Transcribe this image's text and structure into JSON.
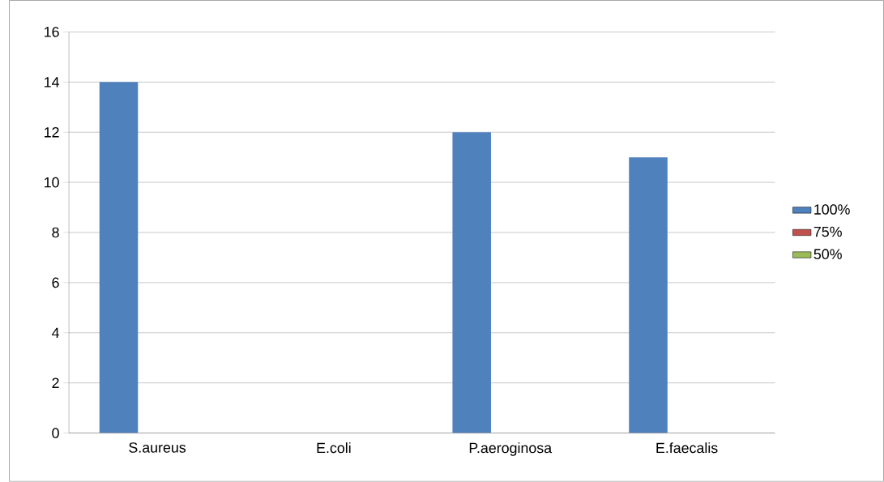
{
  "chart_data": {
    "type": "bar",
    "categories": [
      "S.aureus",
      "E.coli",
      "P.aeroginosa",
      "E.faecalis"
    ],
    "series": [
      {
        "name": "100%",
        "color": "#4f81bd",
        "values": [
          14,
          0,
          12,
          11
        ]
      },
      {
        "name": "75%",
        "color": "#c0504d",
        "values": [
          0,
          0,
          0,
          0
        ]
      },
      {
        "name": "50%",
        "color": "#9bbb59",
        "values": [
          0,
          0,
          0,
          0
        ]
      }
    ],
    "ylim": [
      0,
      16
    ],
    "yticks": [
      0,
      2,
      4,
      6,
      8,
      10,
      12,
      14,
      16
    ],
    "grid": "y",
    "legend": "right"
  }
}
